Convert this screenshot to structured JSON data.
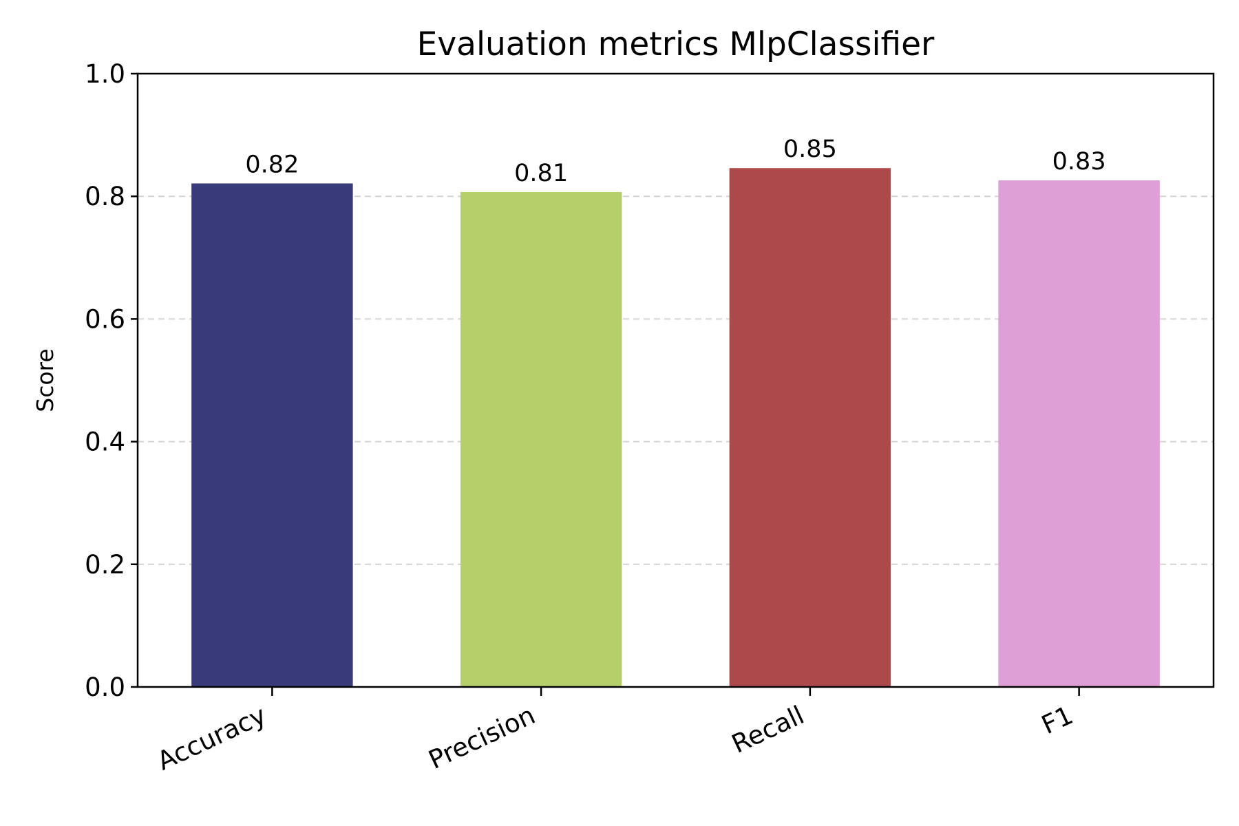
{
  "chart_data": {
    "type": "bar",
    "title": "Evaluation metrics MlpClassifier",
    "xlabel": "",
    "ylabel": "Score",
    "categories": [
      "Accuracy",
      "Precision",
      "Recall",
      "F1"
    ],
    "values": [
      0.821,
      0.807,
      0.846,
      0.826
    ],
    "data_labels": [
      "0.82",
      "0.81",
      "0.85",
      "0.83"
    ],
    "colors": [
      "#393b79",
      "#b5cf6b",
      "#ad494a",
      "#de9ed6"
    ],
    "ylim": [
      0,
      1
    ],
    "yticks": [
      0.0,
      0.2,
      0.4,
      0.6,
      0.8,
      1.0
    ],
    "ytick_labels": [
      "0.0",
      "0.2",
      "0.4",
      "0.6",
      "0.8",
      "1.0"
    ],
    "grid": "y-dashed",
    "legend": "none"
  }
}
